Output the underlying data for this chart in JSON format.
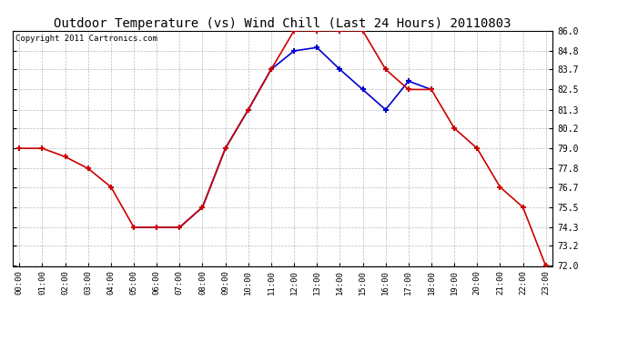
{
  "title": "Outdoor Temperature (vs) Wind Chill (Last 24 Hours) 20110803",
  "copyright": "Copyright 2011 Cartronics.com",
  "x_labels": [
    "00:00",
    "01:00",
    "02:00",
    "03:00",
    "04:00",
    "05:00",
    "06:00",
    "07:00",
    "08:00",
    "09:00",
    "10:00",
    "11:00",
    "12:00",
    "13:00",
    "14:00",
    "15:00",
    "16:00",
    "17:00",
    "18:00",
    "19:00",
    "20:00",
    "21:00",
    "22:00",
    "23:00"
  ],
  "hours_red": [
    0,
    1,
    2,
    3,
    4,
    5,
    6,
    7,
    8,
    9,
    10,
    11,
    12,
    13,
    14,
    15,
    16,
    17,
    18,
    19,
    20,
    21,
    22,
    23
  ],
  "temp_red": [
    79.0,
    79.0,
    78.5,
    77.8,
    76.7,
    74.3,
    74.3,
    74.3,
    75.5,
    79.0,
    81.3,
    83.7,
    86.0,
    86.0,
    86.0,
    86.0,
    83.7,
    82.5,
    82.5,
    80.2,
    79.0,
    76.7,
    75.5,
    72.0
  ],
  "hours_blue": [
    5,
    6,
    7,
    8,
    9,
    10,
    11,
    12,
    13,
    14,
    15,
    16,
    17,
    18
  ],
  "temp_blue": [
    74.3,
    74.3,
    74.3,
    75.5,
    79.0,
    81.3,
    83.7,
    84.8,
    85.0,
    83.7,
    82.5,
    81.3,
    83.0,
    82.5
  ],
  "ylim_min": 72.0,
  "ylim_max": 86.0,
  "yticks": [
    72.0,
    73.2,
    74.3,
    75.5,
    76.7,
    77.8,
    79.0,
    80.2,
    81.3,
    82.5,
    83.7,
    84.8,
    86.0
  ],
  "red_color": "#cc0000",
  "blue_color": "#0000cc",
  "bg_color": "#ffffff",
  "grid_color": "#aaaaaa",
  "title_fontsize": 10,
  "copyright_fontsize": 6.5
}
